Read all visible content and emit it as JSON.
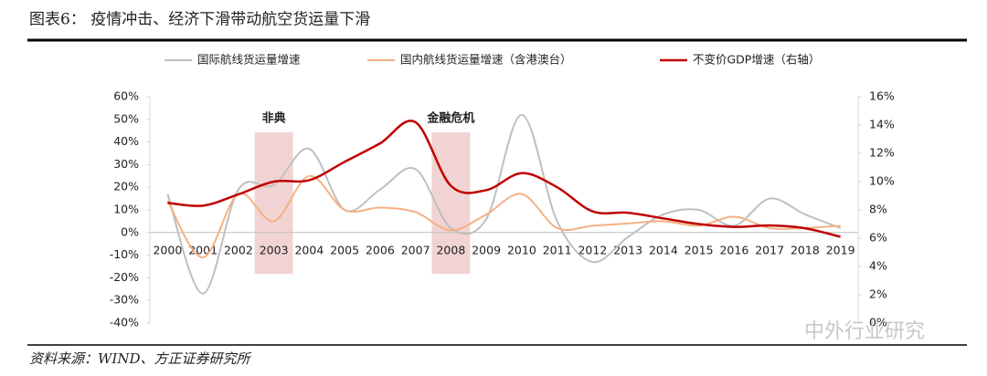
{
  "header": {
    "title": "图表6：  疫情冲击、经济下滑带动航空货运量下滑"
  },
  "chart_data": {
    "type": "line",
    "categories": [
      "2000",
      "2001",
      "2002",
      "2003",
      "2004",
      "2005",
      "2006",
      "2007",
      "2008",
      "2009",
      "2010",
      "2011",
      "2012",
      "2013",
      "2014",
      "2015",
      "2016",
      "2017",
      "2018",
      "2019"
    ],
    "series": [
      {
        "name": "国际航线货运量增速",
        "color": "#bfbfbf",
        "values": [
          17,
          -27,
          19,
          21,
          37,
          10,
          19,
          28,
          2,
          6,
          52,
          5,
          -13,
          -2,
          8,
          10,
          3,
          15,
          8,
          2
        ]
      },
      {
        "name": "国内航线货运量增速（含港澳台）",
        "color": "#f4b183",
        "values": [
          14,
          -11,
          17,
          5,
          25,
          10,
          11,
          9,
          1,
          8,
          17,
          2,
          3,
          4,
          5,
          3,
          7,
          2,
          2,
          3
        ]
      },
      {
        "name": "不变价GDP增速（右轴）",
        "color": "#c00000",
        "axis": "y2",
        "values": [
          8.5,
          8.3,
          9.1,
          10.0,
          10.1,
          11.4,
          12.7,
          14.2,
          9.7,
          9.4,
          10.6,
          9.6,
          7.9,
          7.8,
          7.4,
          7.0,
          6.8,
          6.9,
          6.7,
          6.1
        ]
      }
    ],
    "ylim": [
      -40,
      60
    ],
    "yticks": [
      {
        "value": -40,
        "label": "-40%"
      },
      {
        "value": -30,
        "label": "-30%"
      },
      {
        "value": -20,
        "label": "-20%"
      },
      {
        "value": -10,
        "label": "-10%"
      },
      {
        "value": 0,
        "label": "0%"
      },
      {
        "value": 10,
        "label": "10%"
      },
      {
        "value": 20,
        "label": "20%"
      },
      {
        "value": 30,
        "label": "30%"
      },
      {
        "value": 40,
        "label": "40%"
      },
      {
        "value": 50,
        "label": "50%"
      },
      {
        "value": 60,
        "label": "60%"
      }
    ],
    "y2lim": [
      0,
      16
    ],
    "y2ticks": [
      {
        "value": 0,
        "label": "0%"
      },
      {
        "value": 2,
        "label": "2%"
      },
      {
        "value": 4,
        "label": "4%"
      },
      {
        "value": 6,
        "label": "6%"
      },
      {
        "value": 8,
        "label": "8%"
      },
      {
        "value": 10,
        "label": "10%"
      },
      {
        "value": 12,
        "label": "12%"
      },
      {
        "value": 14,
        "label": "14%"
      },
      {
        "value": 16,
        "label": "16%"
      }
    ],
    "smooth": true,
    "legend": "top",
    "annotations": [
      {
        "text": "非典",
        "category": "2003"
      },
      {
        "text": "金融危机",
        "category": "2008"
      }
    ],
    "highlight_color": "#f2d3d3"
  },
  "watermark": "中外行业研究",
  "footer": {
    "source": "资料来源：WIND、方正证券研究所"
  }
}
